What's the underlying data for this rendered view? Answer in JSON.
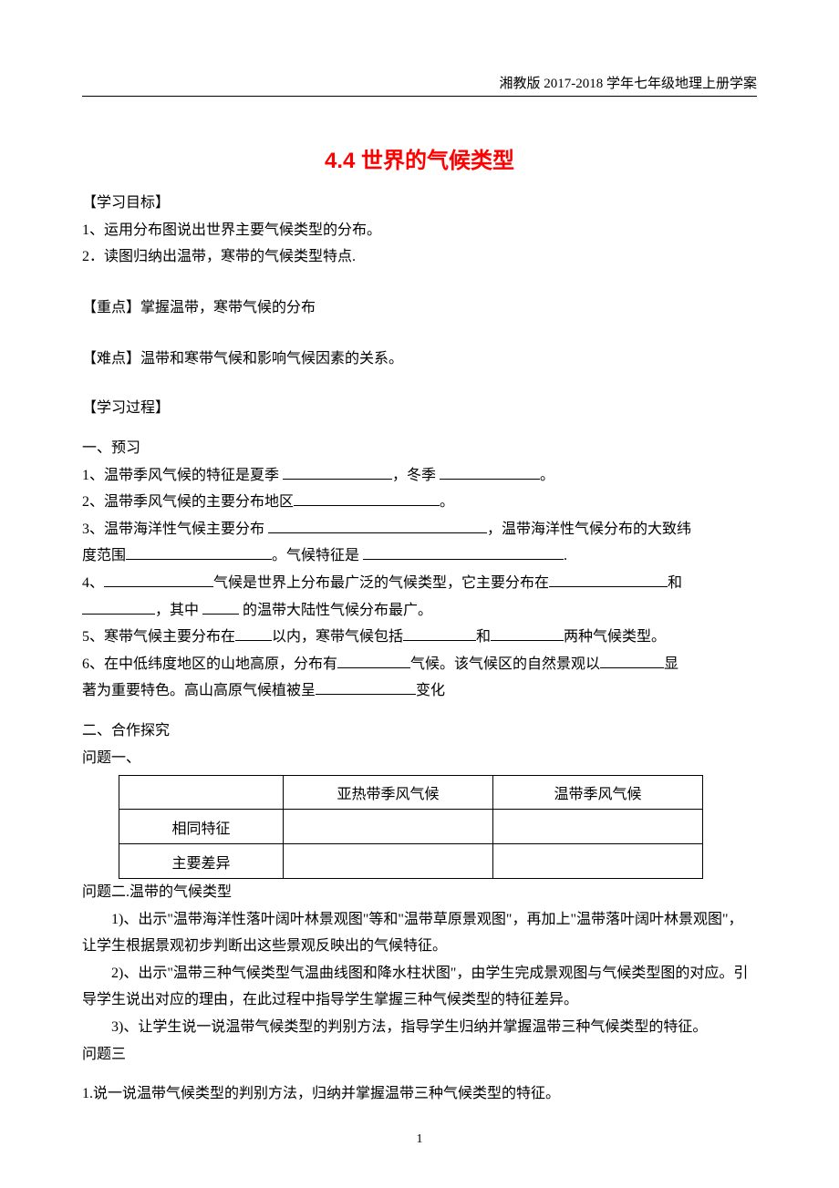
{
  "header": "湘教版 2017-2018 学年七年级地理上册学案",
  "title": "4.4 世界的气候类型",
  "objectives": {
    "label": "【学习目标】",
    "item1": "1、运用分布图说出世界主要气候类型的分布。",
    "item2": "2．读图归纳出温带，寒带的气候类型特点."
  },
  "key_point": {
    "label": "【重点】",
    "text": "掌握温带，寒带气候的分布"
  },
  "difficulty": {
    "label": "【难点】",
    "text": "温带和寒带气候和影响气候因素的关系。"
  },
  "process_label": "【学习过程】",
  "preview": {
    "heading": "一、预习",
    "q1_a": "1、温带季风气候的特征是夏季 ",
    "q1_b": "，冬季 ",
    "q1_c": "。",
    "q2_a": "2、温带季风气候的主要分布地区",
    "q2_b": "。",
    "q3_a": "3、温带海洋性气候主要分布 ",
    "q3_b": "，温带海洋性气候分布的大致纬",
    "q3_c": "度范围",
    "q3_d": "。气候特征是 ",
    "q3_e": ".",
    "q4_a": "4、",
    "q4_b": "气候是世界上分布最广泛的气候类型，它主要分布在",
    "q4_c": "和",
    "q4_d": "，其中 ",
    "q4_e": " 的温带大陆性气候分布最广。",
    "q5_a": "5、寒带气候主要分布在",
    "q5_b": "以内，寒带气候包括",
    "q5_c": "和",
    "q5_d": "两种气候类型。",
    "q6_a": "6、在中低纬度地区的山地高原，分布有",
    "q6_b": "气候。该气候区的自然景观以",
    "q6_c": "显",
    "q6_d": "著为重要特色。高山高原气候植被呈",
    "q6_e": "变化"
  },
  "inquiry": {
    "heading": "二、合作探究",
    "q1_label": "问题一、",
    "table": {
      "col2_header": "亚热带季风气候",
      "col3_header": "温带季风气候",
      "row1_label": "相同特征",
      "row2_label": "主要差异"
    },
    "q2_label": "问题二.温带的气候类型",
    "q2_p1": "1)、出示\"温带海洋性落叶阔叶林景观图\"等和\"温带草原景观图\"，再加上\"温带落叶阔叶林景观图\"，让学生根据景观初步判断出这些景观反映出的气候特征。",
    "q2_p2": "2)、出示\"温带三种气候类型气温曲线图和降水柱状图\"，由学生完成景观图与气候类型图的对应。引导学生说出对应的理由，在此过程中指导学生掌握三种气候类型的特征差异。",
    "q2_p3": "3)、让学生说一说温带气候类型的判别方法，指导学生归纳并掌握温带三种气候类型的特征。",
    "q3_label": "问题三",
    "q3_p1": "1.说一说温带气候类型的判别方法，归纳并掌握温带三种气候类型的特征。"
  },
  "page_number": "1",
  "colors": {
    "title_color": "#ff0000",
    "text_color": "#000000",
    "background": "#ffffff",
    "border_color": "#000000"
  },
  "typography": {
    "title_fontsize": 24,
    "body_fontsize": 16,
    "header_fontsize": 15,
    "page_number_fontsize": 14
  },
  "blank_widths": {
    "w1": 120,
    "w2": 110,
    "w3": 160,
    "w4": 240,
    "w5": 160,
    "w6": 220,
    "w7": 120,
    "w8": 130,
    "w9": 80,
    "w10": 40,
    "w11": 40,
    "w12": 80,
    "w13": 80,
    "w14": 80,
    "w15": 70,
    "w16": 110
  }
}
